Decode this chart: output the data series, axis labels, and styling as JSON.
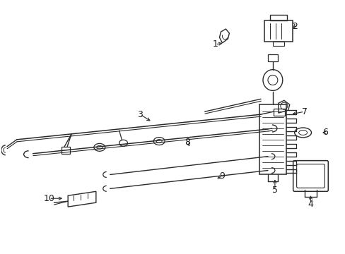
{
  "bg_color": "#ffffff",
  "line_color": "#2a2a2a",
  "text_color": "#1a1a1a",
  "fig_width": 4.89,
  "fig_height": 3.6,
  "dpi": 100
}
